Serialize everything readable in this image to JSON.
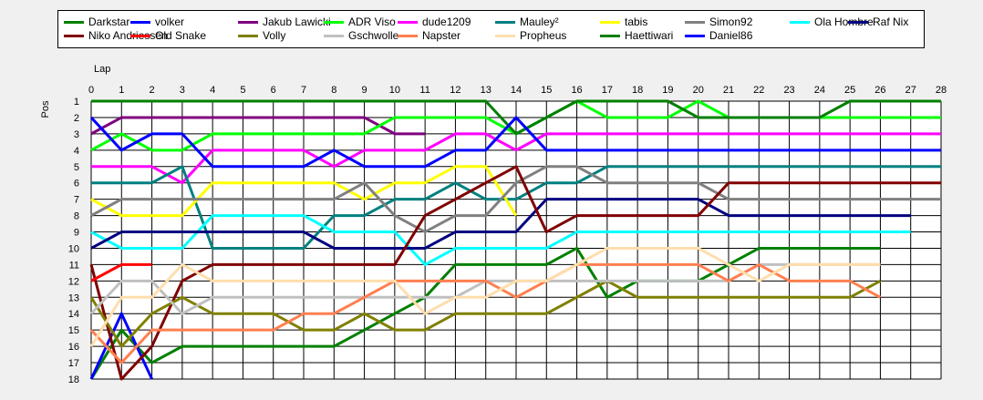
{
  "chart_data": {
    "type": "line",
    "xlabel": "Lap",
    "ylabel": "Pos",
    "xlim": [
      0,
      28
    ],
    "ylim": [
      1,
      18
    ],
    "x_ticks": [
      0,
      1,
      2,
      3,
      4,
      5,
      6,
      7,
      8,
      9,
      10,
      11,
      12,
      13,
      14,
      15,
      16,
      17,
      18,
      19,
      20,
      21,
      22,
      23,
      24,
      25,
      26,
      27,
      28
    ],
    "y_ticks": [
      1,
      2,
      3,
      4,
      5,
      6,
      7,
      8,
      9,
      10,
      11,
      12,
      13,
      14,
      15,
      16,
      17,
      18
    ],
    "grid": true,
    "legend_position": "top",
    "series": [
      {
        "name": "Darkstar",
        "color": "#008000",
        "values": [
          18,
          15,
          17,
          16,
          16,
          16,
          16,
          16,
          16,
          15,
          14,
          13,
          11,
          11,
          11,
          11,
          10,
          13,
          12,
          12,
          12,
          11,
          10,
          10,
          10,
          10,
          10
        ]
      },
      {
        "name": "volker",
        "color": "#0000ff",
        "values": [
          18,
          14,
          18
        ]
      },
      {
        "name": "Jakub Lawicki",
        "color": "#800080",
        "values": [
          3,
          2,
          2,
          2,
          2,
          2,
          2,
          2,
          2,
          2,
          3,
          3
        ]
      },
      {
        "name": "ADR Viso",
        "color": "#00ff00",
        "values": [
          4,
          3,
          4,
          4,
          3,
          3,
          3,
          3,
          3,
          3,
          2,
          2,
          2,
          2,
          3,
          2,
          1,
          2,
          2,
          2,
          1,
          2,
          2,
          2,
          2,
          2,
          2,
          2,
          2
        ]
      },
      {
        "name": "dude1209",
        "color": "#ff00ff",
        "values": [
          5,
          5,
          5,
          6,
          4,
          4,
          4,
          4,
          5,
          4,
          4,
          4,
          3,
          3,
          4,
          3,
          3,
          3,
          3,
          3,
          3,
          3,
          3,
          3,
          3,
          3,
          3,
          3,
          3
        ]
      },
      {
        "name": "Mauley²",
        "color": "#008080",
        "values": [
          6,
          6,
          6,
          5,
          10,
          10,
          10,
          10,
          8,
          8,
          7,
          7,
          6,
          7,
          7,
          6,
          6,
          5,
          5,
          5,
          5,
          5,
          5,
          5,
          5,
          5,
          5,
          5,
          5
        ]
      },
      {
        "name": "tabis",
        "color": "#ffff00",
        "values": [
          7,
          8,
          8,
          8,
          6,
          6,
          6,
          6,
          6,
          7,
          6,
          6,
          5,
          5,
          8
        ]
      },
      {
        "name": "Simon92",
        "color": "#808080",
        "values": [
          8,
          7,
          7,
          7,
          7,
          7,
          7,
          7,
          7,
          6,
          8,
          9,
          8,
          8,
          6,
          5,
          5,
          6,
          6,
          6,
          6,
          7,
          7,
          7,
          7,
          7,
          7,
          7,
          7
        ]
      },
      {
        "name": "Ola Hombre",
        "color": "#00ffff",
        "values": [
          9,
          10,
          10,
          10,
          8,
          8,
          8,
          8,
          9,
          9,
          9,
          11,
          10,
          10,
          10,
          10,
          9,
          9,
          9,
          9,
          9,
          9,
          9,
          9,
          9,
          9,
          9,
          9
        ]
      },
      {
        "name": "Raf Nix",
        "color": "#000080",
        "values": [
          10,
          9,
          9,
          9,
          9,
          9,
          9,
          9,
          10,
          10,
          10,
          10,
          9,
          9,
          9,
          7,
          7,
          7,
          7,
          7,
          7,
          8,
          8,
          8,
          8,
          8,
          8,
          8
        ]
      },
      {
        "name": "Niko Andriessen",
        "color": "#800000",
        "values": [
          11,
          18,
          16,
          12,
          11,
          11,
          11,
          11,
          11,
          11,
          11,
          8,
          7,
          6,
          5,
          9,
          8,
          8,
          8,
          8,
          8,
          6,
          6,
          6,
          6,
          6,
          6,
          6,
          6
        ]
      },
      {
        "name": "Old Snake",
        "color": "#ff0000",
        "values": [
          12,
          11,
          11
        ]
      },
      {
        "name": "Volly",
        "color": "#808000",
        "values": [
          13,
          16,
          14,
          13,
          14,
          14,
          14,
          15,
          15,
          14,
          15,
          15,
          14,
          14,
          14,
          14,
          13,
          12,
          13,
          13,
          13,
          13,
          13,
          13,
          13,
          13,
          12
        ]
      },
      {
        "name": "Gschwolle",
        "color": "#c0c0c0",
        "values": [
          14,
          12,
          12,
          14,
          13,
          13,
          13,
          13,
          13,
          13,
          13,
          13,
          13,
          12,
          12,
          12,
          12,
          12,
          12,
          12,
          12,
          12,
          11,
          11,
          11,
          11,
          11
        ]
      },
      {
        "name": "Napster",
        "color": "#ff7f50",
        "values": [
          15,
          17,
          15,
          15,
          15,
          15,
          15,
          14,
          14,
          13,
          12,
          12,
          12,
          12,
          13,
          12,
          11,
          11,
          11,
          11,
          11,
          12,
          11,
          12,
          12,
          12,
          13
        ]
      },
      {
        "name": "Propheus",
        "color": "#ffdead",
        "values": [
          16,
          13,
          13,
          11,
          12,
          12,
          12,
          12,
          12,
          12,
          12,
          14,
          13,
          13,
          12,
          12,
          11,
          10,
          10,
          10,
          10,
          11,
          12,
          11,
          11,
          11,
          11
        ]
      },
      {
        "name": "Haettiwari",
        "color": "#008000",
        "values": [
          1,
          1,
          1,
          1,
          1,
          1,
          1,
          1,
          1,
          1,
          1,
          1,
          1,
          1,
          3,
          2,
          1,
          1,
          1,
          1,
          2,
          2,
          2,
          2,
          2,
          1,
          1,
          1,
          1
        ]
      },
      {
        "name": "Daniel86",
        "color": "#0000ff",
        "values": [
          2,
          4,
          3,
          3,
          5,
          5,
          5,
          5,
          4,
          5,
          5,
          5,
          4,
          4,
          2,
          4,
          4,
          4,
          4,
          4,
          4,
          4,
          4,
          4,
          4,
          4,
          4,
          4,
          4
        ]
      }
    ]
  }
}
